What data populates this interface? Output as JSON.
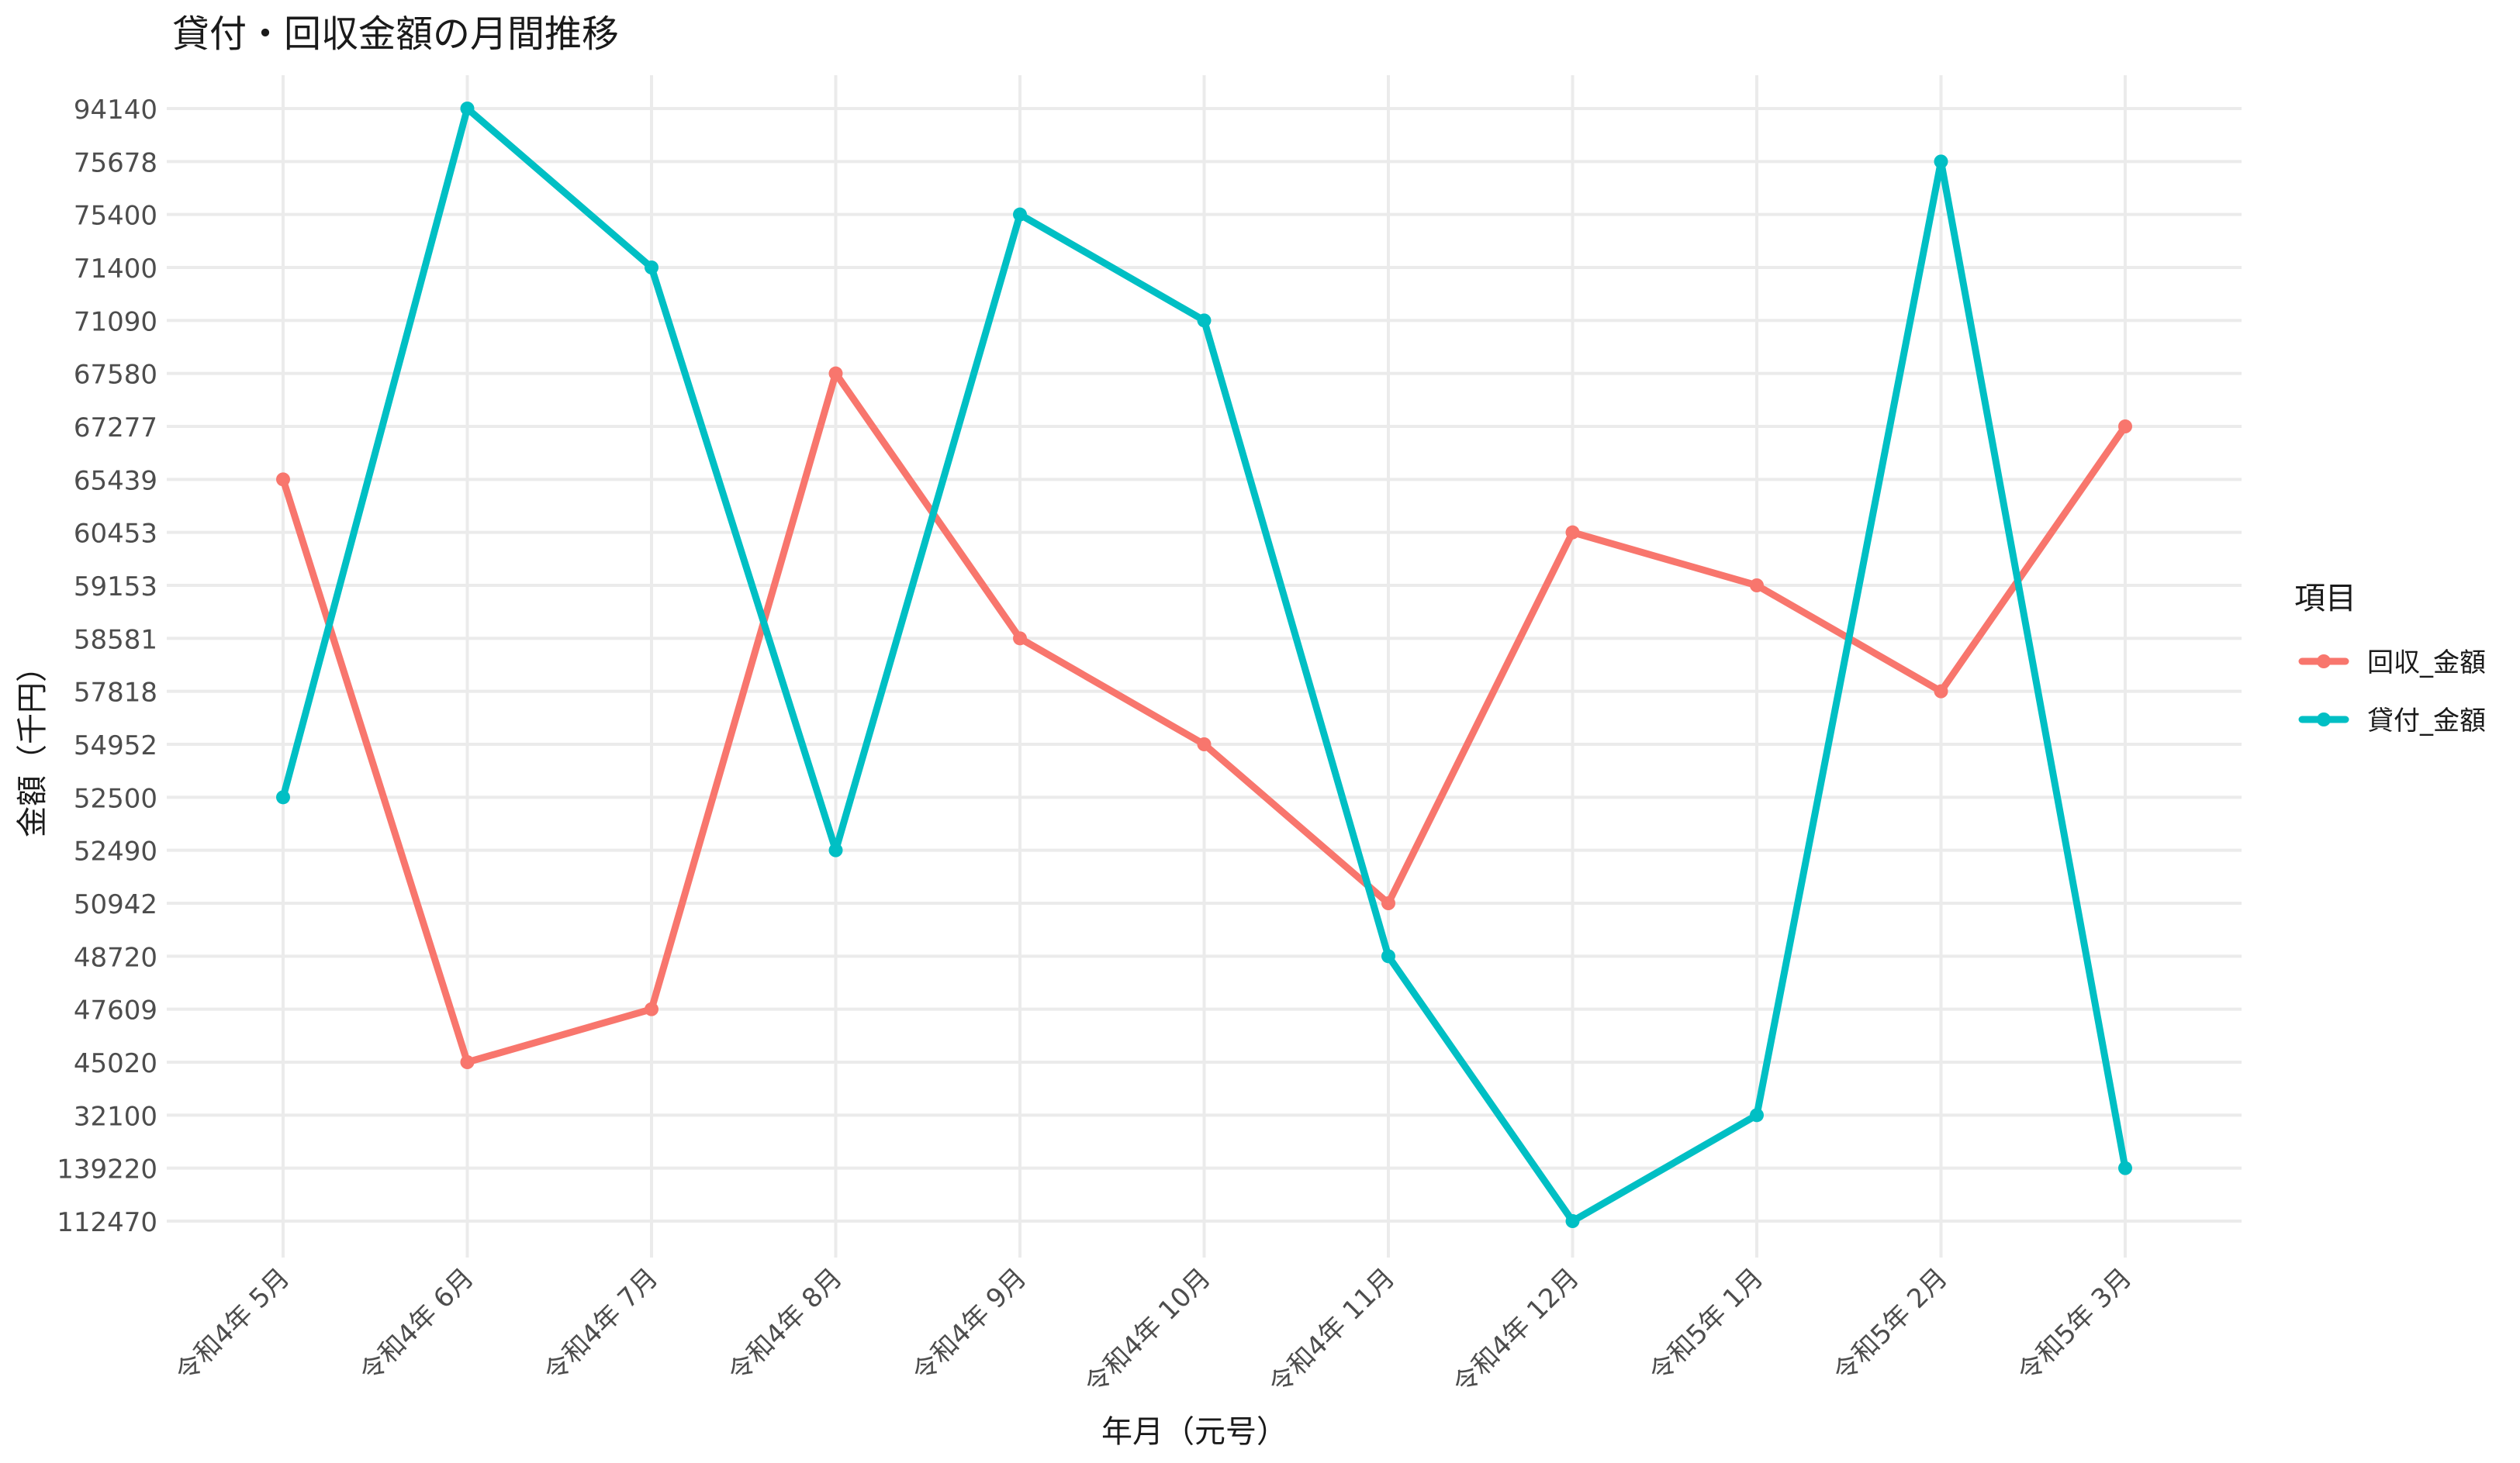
{
  "chart_data": {
    "type": "line",
    "title": "貸付・回収金額の月間推移",
    "xlabel": "年月（元号）",
    "ylabel": "金額（千円）",
    "categories": [
      "令和4年 5月",
      "令和4年 6月",
      "令和4年 7月",
      "令和4年 8月",
      "令和4年 9月",
      "令和4年 10月",
      "令和4年 11月",
      "令和4年 12月",
      "令和5年 1月",
      "令和5年 2月",
      "令和5年 3月"
    ],
    "y_ticks": [
      "112470",
      "139220",
      "32100",
      "45020",
      "47609",
      "48720",
      "50942",
      "52490",
      "52500",
      "54952",
      "57818",
      "58581",
      "59153",
      "60453",
      "65439",
      "67277",
      "67580",
      "71090",
      "71400",
      "75400",
      "75678",
      "94140"
    ],
    "legend": {
      "title": "項目",
      "placement": "right"
    },
    "grid": true,
    "series": [
      {
        "name": "回収_金額",
        "color": "#F8766D",
        "values": [
          "65439",
          "45020",
          "47609",
          "67580",
          "58581",
          "54952",
          "50942",
          "60453",
          "59153",
          "57818",
          "67277"
        ]
      },
      {
        "name": "貸付_金額",
        "color": "#00BFC4",
        "values": [
          "52500",
          "94140",
          "71400",
          "52490",
          "75400",
          "71090",
          "48720",
          "112470",
          "32100",
          "75678",
          "139220"
        ]
      }
    ]
  }
}
